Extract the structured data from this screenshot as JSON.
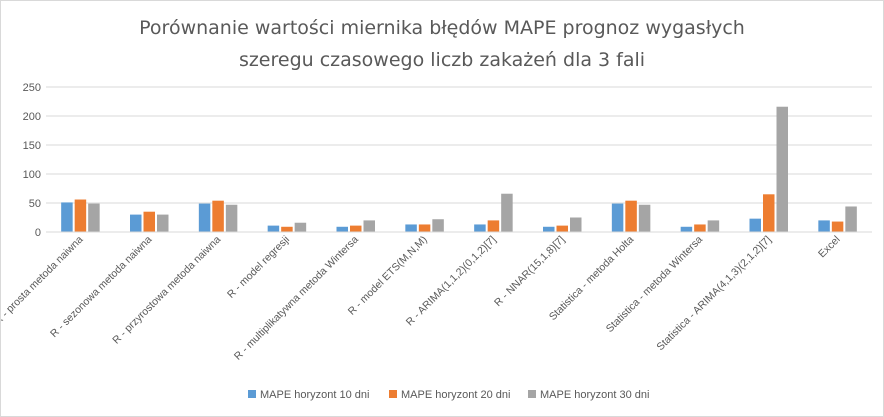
{
  "chart_data": {
    "type": "bar",
    "title": "Porównanie wartości miernika błędów MAPE prognoz wygasłych szeregu czasowego liczb zakażeń dla 3 fali",
    "title_lines": [
      "Porównanie wartości miernika błędów MAPE prognoz wygasłych",
      "szeregu czasowego liczb zakażeń dla 3 fali"
    ],
    "categories": [
      "R - prosta metoda naiwna",
      "R - sezonowa metoda naiwna",
      "R - przyrostowa metoda naiwna",
      "R - model regresji",
      "R - multiplikatywna metoda Wintersa",
      "R - model ETS(M,N,M)",
      "R - ARIMA(1,1,2)(0,1,2)[7]",
      "R - NNAR(15,1,8)[7]",
      "Statistica - metoda Holta",
      "Statistica - metoda Wintersa",
      "Statistica - ARIMA(4,1,3)(2,1,2)[7]",
      "Excel"
    ],
    "series": [
      {
        "name": "MAPE horyzont 10 dni",
        "color": "#5b9bd5",
        "values": [
          51,
          30,
          49,
          11,
          9,
          13,
          13,
          9,
          49,
          9,
          23,
          20
        ]
      },
      {
        "name": "MAPE horyzont 20 dni",
        "color": "#ed7d31",
        "values": [
          56,
          35,
          54,
          9,
          11,
          13,
          20,
          11,
          54,
          13,
          65,
          18
        ]
      },
      {
        "name": "MAPE horyzont 30 dni",
        "color": "#a5a5a5",
        "values": [
          49,
          30,
          47,
          16,
          20,
          22,
          66,
          25,
          47,
          20,
          216,
          44
        ]
      }
    ],
    "ylim": [
      0,
      250
    ],
    "yticks": [
      0,
      50,
      100,
      150,
      200,
      250
    ],
    "grid": true,
    "legend": "bottom"
  }
}
